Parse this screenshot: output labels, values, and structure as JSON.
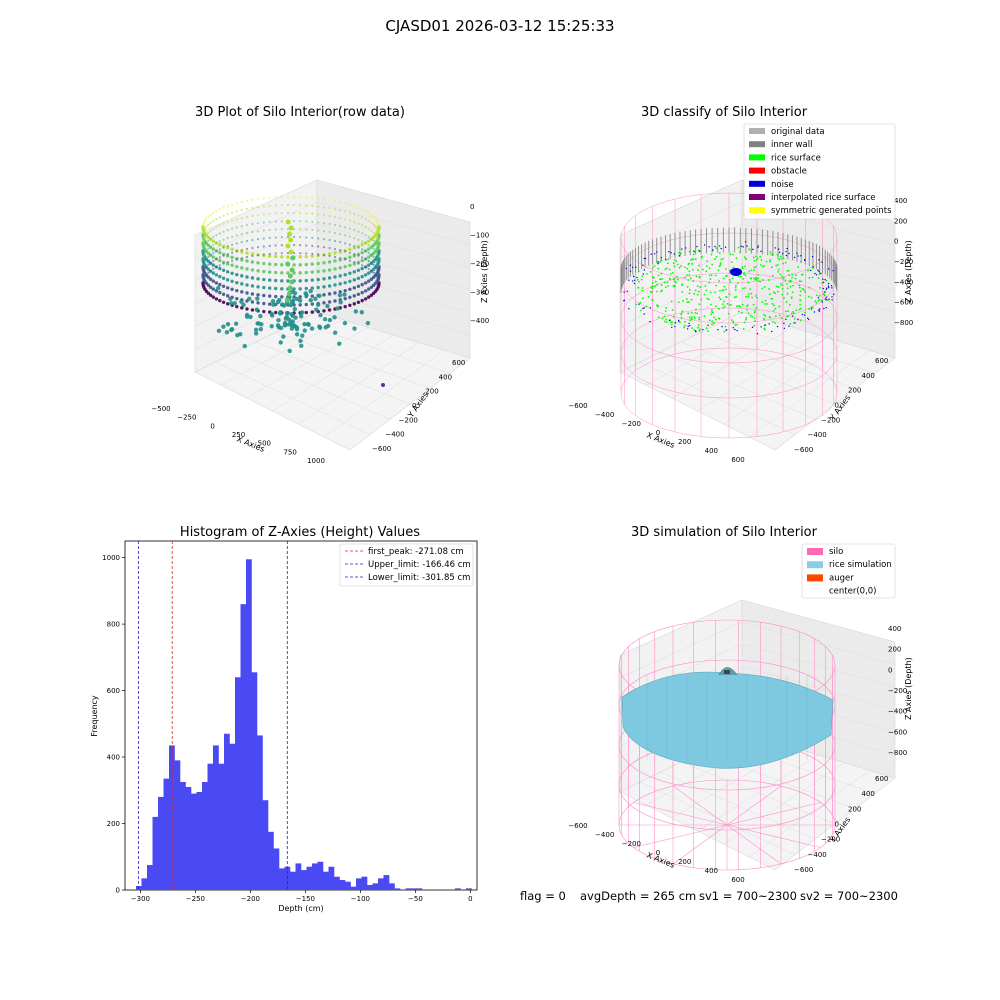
{
  "figure_title": "CJASD01 2026-03-12 15:25:33",
  "footer": {
    "flag": "flag = 0",
    "avg_depth": "avgDepth = 265 cm",
    "sv1": "sv1 = 700~2300",
    "sv2": "sv2 = 700~2300"
  },
  "colors": {
    "hist_bar": "#4a4af5",
    "first_peak_line": "#d62728",
    "limit_line": "#2020c8",
    "silo_wire": "#ff8fc8",
    "rice_surface": "#7ec8e0",
    "rice_points": "#00ff00",
    "noise_points": "#0000dd",
    "inner_wall": "#888888"
  },
  "chart_data": [
    {
      "type": "scatter3d",
      "title": "3D Plot of Silo Interior(row data)",
      "xlabel": "X Axies",
      "ylabel": "Y Axies",
      "zlabel": "Z Axies (Depth)",
      "x_ticks": [
        "−500",
        "−250",
        "0",
        "250",
        "500",
        "750",
        "1000"
      ],
      "y_ticks": [
        "600",
        "400",
        "200",
        "0",
        "−200",
        "−400",
        "−600"
      ],
      "z_ticks": [
        "0",
        "−100",
        "−200",
        "−300",
        "−400"
      ],
      "colormap": "viridis"
    },
    {
      "type": "scatter3d",
      "title": "3D classify of Silo Interior",
      "xlabel": "X Axies",
      "ylabel": "Y Axies",
      "zlabel": "Z Axies (Depth)",
      "x_ticks": [
        "−600",
        "−400",
        "−200",
        "0",
        "200",
        "400",
        "600"
      ],
      "y_ticks": [
        "600",
        "400",
        "200",
        "0",
        "−200",
        "−400",
        "−600"
      ],
      "z_ticks": [
        "400",
        "200",
        "0",
        "−200",
        "−400",
        "−600",
        "−800"
      ],
      "legend": [
        {
          "label": "original data",
          "color": "#b0b0b0"
        },
        {
          "label": "inner wall",
          "color": "#808080"
        },
        {
          "label": "rice surface",
          "color": "#00ff00"
        },
        {
          "label": "obstacle",
          "color": "#ff0000"
        },
        {
          "label": "noise",
          "color": "#0000dd"
        },
        {
          "label": "interpolated rice surface",
          "color": "#800080"
        },
        {
          "label": "symmetric generated points",
          "color": "#ffff00"
        }
      ]
    },
    {
      "type": "bar",
      "title": "Histogram of Z-Axies (Height) Values",
      "xlabel": "Depth (cm)",
      "ylabel": "Frequency",
      "xlim": [
        -314,
        6
      ],
      "ylim": [
        0,
        1050
      ],
      "x_ticks": [
        -300,
        -250,
        -200,
        -150,
        -100,
        -50,
        0
      ],
      "y_ticks": [
        0,
        200,
        400,
        600,
        800,
        1000
      ],
      "bin_width": 5,
      "bin_starts": [
        -304,
        -299,
        -294,
        -289,
        -284,
        -279,
        -274,
        -269,
        -264,
        -259,
        -254,
        -249,
        -244,
        -239,
        -234,
        -229,
        -224,
        -219,
        -214,
        -209,
        -204,
        -199,
        -194,
        -189,
        -184,
        -179,
        -174,
        -169,
        -164,
        -159,
        -154,
        -149,
        -144,
        -139,
        -134,
        -129,
        -124,
        -119,
        -114,
        -109,
        -104,
        -99,
        -94,
        -89,
        -84,
        -79,
        -74,
        -69,
        -64,
        -59,
        -54,
        -49,
        -44,
        -39,
        -34,
        -29,
        -24,
        -19,
        -14,
        -9,
        -4,
        1
      ],
      "values": [
        12,
        35,
        75,
        220,
        280,
        335,
        435,
        390,
        325,
        310,
        290,
        295,
        325,
        380,
        435,
        380,
        470,
        440,
        640,
        860,
        995,
        655,
        465,
        270,
        175,
        125,
        65,
        70,
        55,
        80,
        60,
        70,
        80,
        85,
        55,
        70,
        40,
        30,
        25,
        10,
        35,
        40,
        15,
        20,
        35,
        45,
        20,
        5,
        0,
        5,
        5,
        5,
        0,
        0,
        0,
        0,
        0,
        0,
        5,
        0,
        5,
        0
      ],
      "vlines": [
        {
          "label": "first_peak: -271.08 cm",
          "x": -271.08,
          "style": "red-dashed"
        },
        {
          "label": "Upper_limit: -166.46 cm",
          "x": -166.46,
          "style": "blue-dashed"
        },
        {
          "label": "Lower_limit: -301.85 cm",
          "x": -301.85,
          "style": "blue-dashed"
        }
      ]
    },
    {
      "type": "surface3d",
      "title": "3D simulation of Silo Interior",
      "xlabel": "X Axies",
      "ylabel": "Y Axies",
      "zlabel": "Z Axies (Depth)",
      "x_ticks": [
        "−600",
        "−400",
        "−200",
        "0",
        "200",
        "400",
        "600"
      ],
      "y_ticks": [
        "600",
        "400",
        "200",
        "0",
        "−200",
        "−400",
        "−600"
      ],
      "z_ticks": [
        "400",
        "200",
        "0",
        "−200",
        "−400",
        "−600",
        "−800"
      ],
      "legend": [
        {
          "label": "silo",
          "color": "#ff69b4"
        },
        {
          "label": "rice simulation",
          "color": "#87ceeb"
        },
        {
          "label": "auger",
          "color": "#ff4500"
        },
        {
          "label": "center(0,0)",
          "color": "#ffffff"
        }
      ]
    }
  ]
}
